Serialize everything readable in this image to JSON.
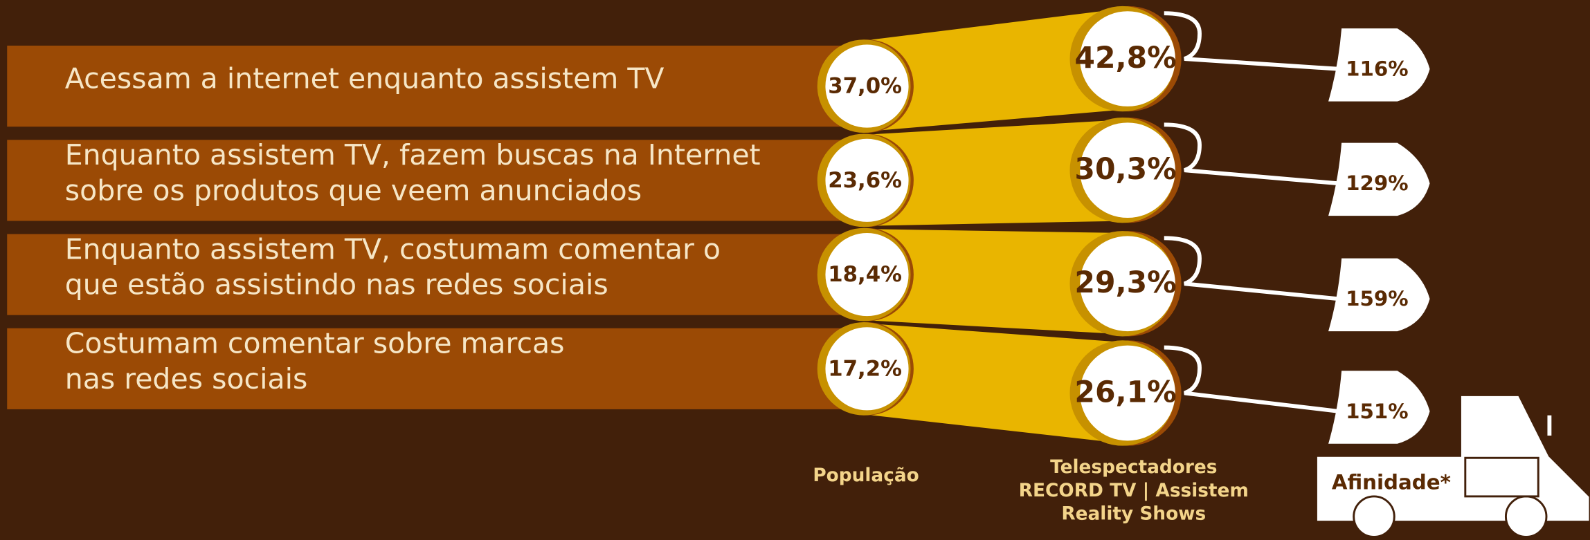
{
  "chart_data": {
    "type": "comparison",
    "categories": [
      "Acessam a internet enquanto assistem TV",
      "Enquanto assistem TV, fazem buscas na Internet\nsobre os produtos que veem anunciados",
      "Enquanto assistem TV, costumam comentar o\nque estão assistindo nas redes sociais",
      "Costumam comentar sobre marcas\nnas redes sociais"
    ],
    "series": [
      {
        "name": "População",
        "color": "#9b4a05",
        "values": [
          37.0,
          23.6,
          18.4,
          17.2
        ],
        "value_labels": [
          "37,0%",
          "23,6%",
          "18,4%",
          "17,2%"
        ]
      },
      {
        "name": "Telespectadores\nRECORD TV | Assistem\nReality Shows",
        "color": "#e9b500",
        "values": [
          42.8,
          30.3,
          29.3,
          26.1
        ],
        "value_labels": [
          "42,8%",
          "30,3%",
          "29,3%",
          "26,1%"
        ]
      },
      {
        "name": "Afinidade*",
        "color": "#ffffff",
        "values": [
          116,
          129,
          159,
          151
        ],
        "value_labels": [
          "116%",
          "129%",
          "159%",
          "151%"
        ]
      }
    ]
  }
}
